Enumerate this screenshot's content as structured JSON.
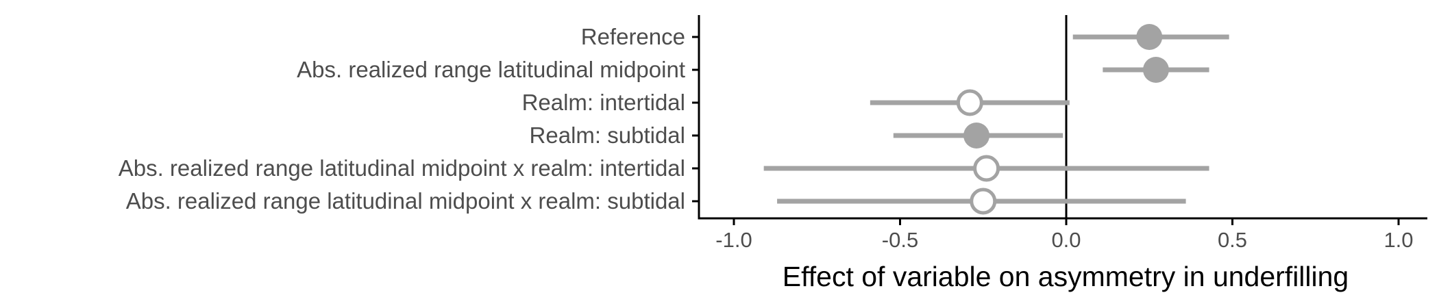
{
  "chart_data": {
    "type": "scatter",
    "subtype": "forest-plot",
    "xlabel": "Effect of variable on asymmetry in underfilling",
    "ylabel": "",
    "xlim": [
      -1.1,
      1.1
    ],
    "xticks": [
      -1.0,
      -0.5,
      0.0,
      0.5,
      1.0
    ],
    "xtick_labels": [
      "-1.0",
      "-0.5",
      "0.0",
      "0.5",
      "1.0"
    ],
    "reference_line_x": 0.0,
    "grid": false,
    "marker_color": "#a3a3a3",
    "reference_line_color": "#000000",
    "series": [
      {
        "label": "Reference",
        "estimate": 0.25,
        "lower": 0.02,
        "upper": 0.49,
        "filled": true
      },
      {
        "label": "Abs. realized range latitudinal midpoint",
        "estimate": 0.27,
        "lower": 0.11,
        "upper": 0.43,
        "filled": true
      },
      {
        "label": "Realm: intertidal",
        "estimate": -0.29,
        "lower": -0.59,
        "upper": 0.01,
        "filled": false
      },
      {
        "label": "Realm: subtidal",
        "estimate": -0.27,
        "lower": -0.52,
        "upper": -0.01,
        "filled": true
      },
      {
        "label": "Abs. realized range latitudinal midpoint x realm: intertidal",
        "estimate": -0.24,
        "lower": -0.91,
        "upper": 0.43,
        "filled": false
      },
      {
        "label": "Abs. realized range latitudinal midpoint x realm: subtidal",
        "estimate": -0.25,
        "lower": -0.87,
        "upper": 0.36,
        "filled": false
      }
    ]
  }
}
